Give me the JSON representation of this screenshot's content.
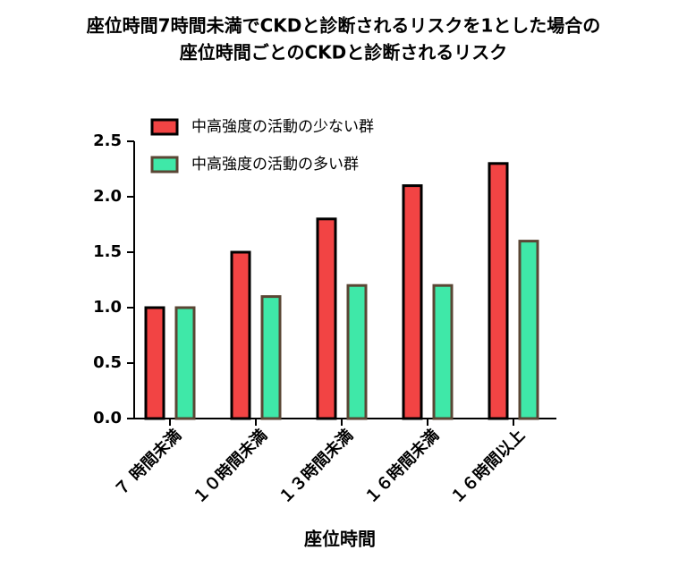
{
  "chart_data": {
    "type": "bar",
    "title": [
      "座位時間7時間未満でCKDと診断されるリスクを1とした場合の",
      "座位時間ごとのCKDと診断されるリスク"
    ],
    "x_label": "座位時間",
    "categories": [
      "７ 時間未満",
      "１０時間未満",
      "１３時間未満",
      "１６時間未満",
      "１６時間以上"
    ],
    "series": [
      {
        "name": "中高強度の活動の少ない群",
        "color": "#f24444",
        "values": [
          1.0,
          1.5,
          1.8,
          2.1,
          2.3
        ]
      },
      {
        "name": "中高強度の活動の多い群",
        "color": "#3fe8a8",
        "values": [
          1.0,
          1.1,
          1.2,
          1.2,
          1.6
        ]
      }
    ],
    "ylim": [
      0,
      2.5
    ],
    "yticks": [
      {
        "value": 0,
        "label": "0.0"
      },
      0.5,
      {
        "value": 1,
        "label": "1.0"
      },
      1.5,
      {
        "value": 2,
        "label": "2.0"
      },
      2.5
    ],
    "legend": "top-left"
  }
}
